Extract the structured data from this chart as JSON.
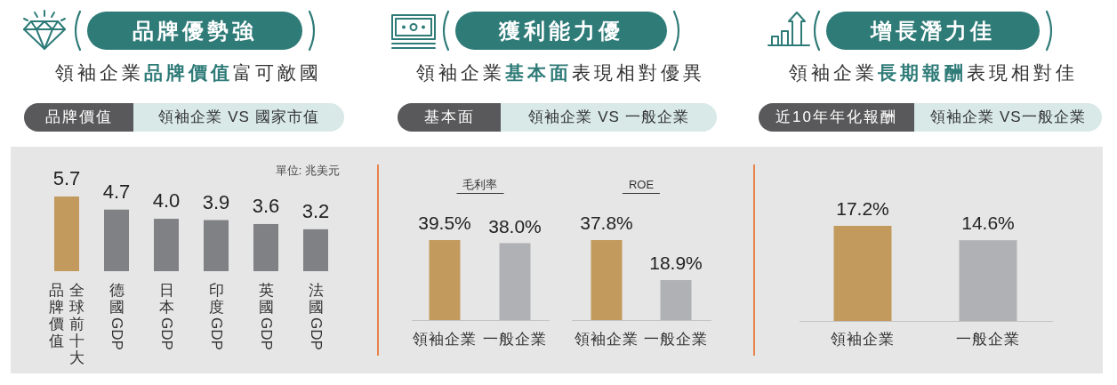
{
  "chart_data": [
    {
      "type": "bar",
      "title": "品牌優勢強",
      "subtitle": "領袖企業**品牌價值**富可敵國",
      "annotations": [
        "品牌價值",
        "領袖企業 VS 國家市值",
        "單位: 兆美元"
      ],
      "categories": [
        "全球前十大品牌價值",
        "德國GDP",
        "日本GDP",
        "印度GDP",
        "英國GDP",
        "法國GDP"
      ],
      "values": [
        5.7,
        4.7,
        4.0,
        3.9,
        3.6,
        3.2
      ],
      "value_labels": [
        "5.7",
        "4.7",
        "4.0",
        "3.9",
        "3.6",
        "3.2"
      ],
      "colors": [
        "#c39a5e",
        "#808184",
        "#808184",
        "#808184",
        "#808184",
        "#808184"
      ]
    },
    {
      "type": "other",
      "title": "獲利能力優",
      "subtitle": "領袖企業**基本面**表現相對優異",
      "annotations": [
        "基本面",
        "領袖企業 VS 一般企業"
      ]
    },
    {
      "type": "bar",
      "title": "毛利率",
      "categories": [
        "領袖企業",
        "一般企業"
      ],
      "values": [
        39.5,
        38.0
      ],
      "value_labels": [
        "39.5%",
        "38.0%"
      ],
      "colors": [
        "#c39a5e",
        "#b0b1b4"
      ]
    },
    {
      "type": "bar",
      "title": "ROE",
      "categories": [
        "領袖企業",
        "一般企業"
      ],
      "values": [
        37.8,
        18.9
      ],
      "value_labels": [
        "37.8%",
        "18.9%"
      ],
      "colors": [
        "#c39a5e",
        "#b0b1b4"
      ]
    },
    {
      "type": "bar",
      "title": "增長潛力佳",
      "subtitle": "領袖企業**長期報酬**表現相對佳",
      "annotations": [
        "近10年年化報酬",
        "領袖企業 VS一般企業"
      ],
      "categories": [
        "領袖企業",
        "一般企業"
      ],
      "values": [
        17.2,
        14.6
      ],
      "value_labels": [
        "17.2%",
        "14.6%"
      ],
      "colors": [
        "#c39a5e",
        "#b0b1b4"
      ]
    }
  ]
}
